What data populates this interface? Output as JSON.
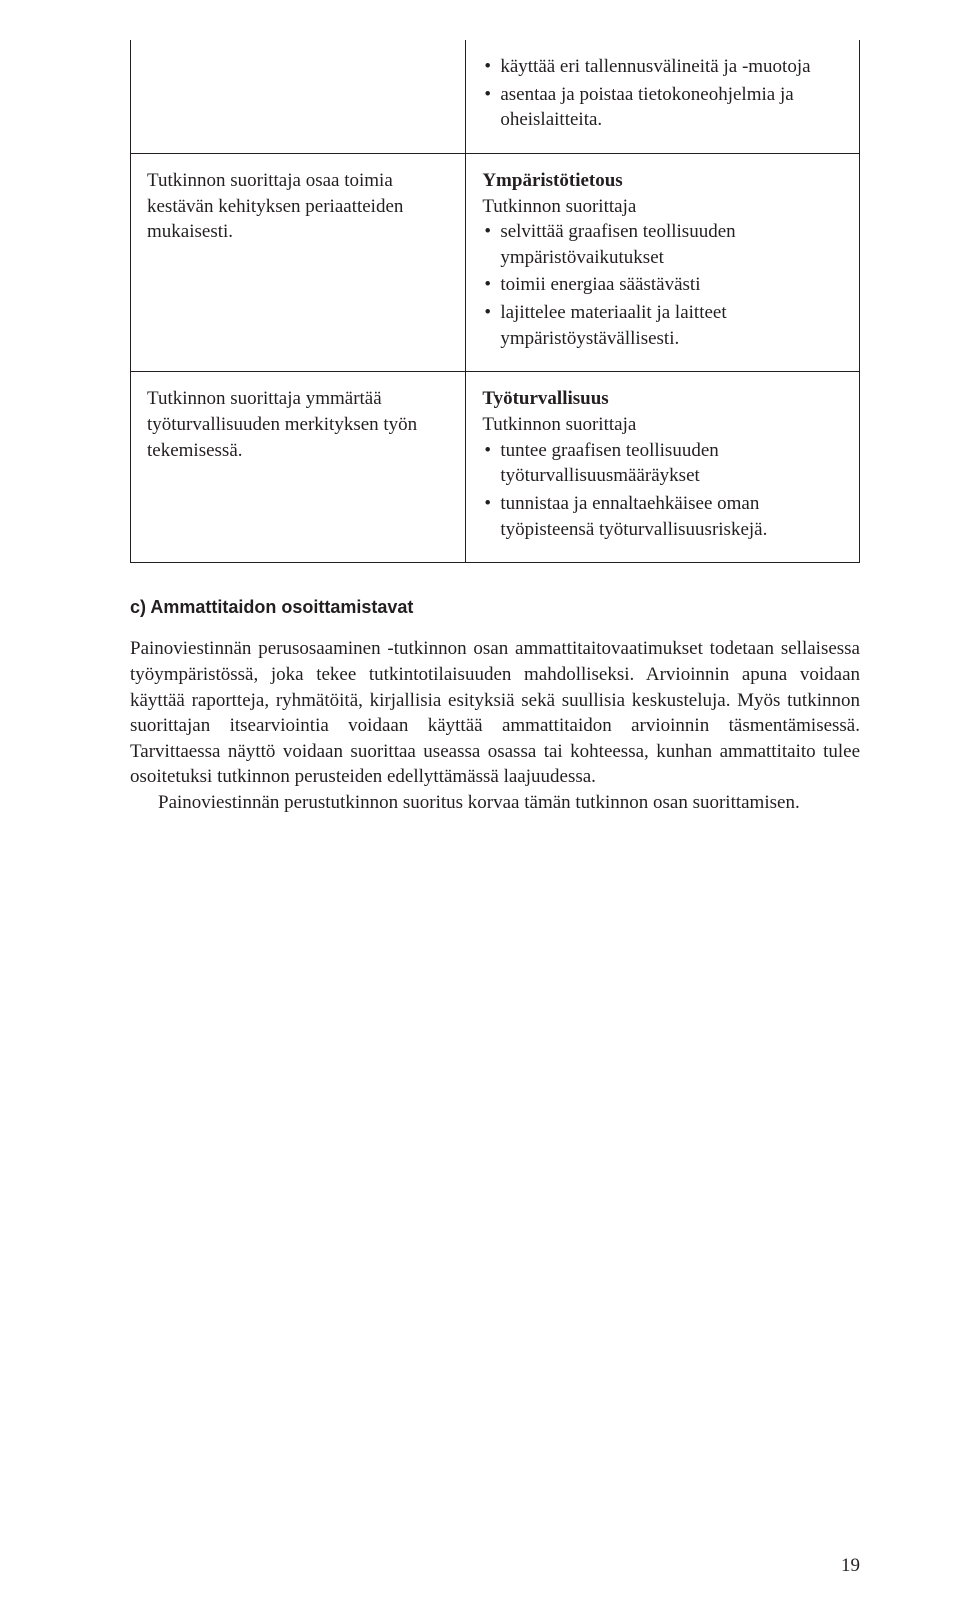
{
  "table": {
    "rows": [
      {
        "left": {
          "text": ""
        },
        "right": {
          "bullets": [
            "käyttää eri tallennusvälineitä ja -muotoja",
            "asentaa ja poistaa tietokoneohjelmia ja oheislaitteita."
          ]
        }
      },
      {
        "left": {
          "text": "Tutkinnon suorittaja osaa toimia kestävän kehityksen periaatteiden mukaisesti."
        },
        "right": {
          "heading": "Ympäristötietous",
          "lead": "Tutkinnon suorittaja",
          "bullets": [
            "selvittää graafisen teollisuuden ympäristövaikutukset",
            "toimii energiaa säästävästi",
            "lajittelee materiaalit ja laitteet ympäristöystävällisesti."
          ]
        }
      },
      {
        "left": {
          "text": "Tutkinnon suorittaja ymmärtää työturvallisuuden merkityksen työn tekemisessä."
        },
        "right": {
          "heading": "Työturvallisuus",
          "lead": "Tutkinnon suorittaja",
          "bullets": [
            "tuntee graafisen teollisuuden työturvallisuusmääräykset",
            "tunnistaa ja ennaltaehkäisee oman työpisteensä työturvallisuusriskejä."
          ]
        }
      }
    ]
  },
  "section": {
    "head": "c) Ammattitaidon osoittamistavat",
    "para1": "Painoviestinnän perusosaaminen -tutkinnon osan ammattitaitovaatimukset todetaan sellaisessa työympäristössä, joka tekee tutkintotilaisuuden mahdolliseksi. Arvioinnin apuna voidaan käyttää raportteja, ryhmätöitä, kirjallisia esityksiä sekä suullisia keskusteluja. Myös tutkinnon suorittajan itsearviointia voidaan käyttää ammattitaidon arvioinnin täsmentämisessä. Tarvittaessa näyttö voidaan suorittaa useassa osassa tai kohteessa, kunhan ammattitaito tulee osoitetuksi tutkinnon perusteiden edellyttämässä laajuudessa.",
    "para2": "Painoviestinnän perustutkinnon suoritus korvaa tämän tutkinnon osan suorittamisen."
  },
  "page_number": "19"
}
